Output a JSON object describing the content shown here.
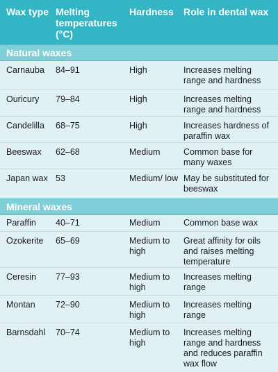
{
  "headers": {
    "type": "Wax type",
    "melting": "Melting temperatures (°C)",
    "hardness": "Hardness",
    "role": "Role in dental wax"
  },
  "sections": [
    {
      "title": "Natural waxes",
      "rows": [
        {
          "wax": "Carnauba",
          "temp": "84–91",
          "hardness": "High",
          "role": "Increases melting range and hardness"
        },
        {
          "wax": "Ouricury",
          "temp": "79–84",
          "hardness": "High",
          "role": "Increases melting range and hardness"
        },
        {
          "wax": "Candelilla",
          "temp": "68–75",
          "hardness": "High",
          "role": "Increases hardness of paraffin wax"
        },
        {
          "wax": "Beeswax",
          "temp": "62–68",
          "hardness": "Medium",
          "role": "Common base for many waxes"
        },
        {
          "wax": "Japan wax",
          "temp": "53",
          "hardness": "Medium/ low",
          "role": "May be substituted for beeswax"
        }
      ]
    },
    {
      "title": "Mineral waxes",
      "rows": [
        {
          "wax": "Paraffin",
          "temp": "40–71",
          "hardness": "Medium",
          "role": "Common base wax"
        },
        {
          "wax": "Ozokerite",
          "temp": "65–69",
          "hardness": "Medium to high",
          "role": "Great affinity for oils and raises melting temperature"
        },
        {
          "wax": "Ceresin",
          "temp": "77–93",
          "hardness": "Medium to high",
          "role": "Increases melting range"
        },
        {
          "wax": "Montan",
          "temp": "72–90",
          "hardness": "Medium to high",
          "role": "Increases melting range"
        },
        {
          "wax": "Barnsdahl",
          "temp": "70–74",
          "hardness": "Medium to high",
          "role": "Increases melting range and hardness and reduces paraffin wax flow"
        }
      ]
    }
  ]
}
